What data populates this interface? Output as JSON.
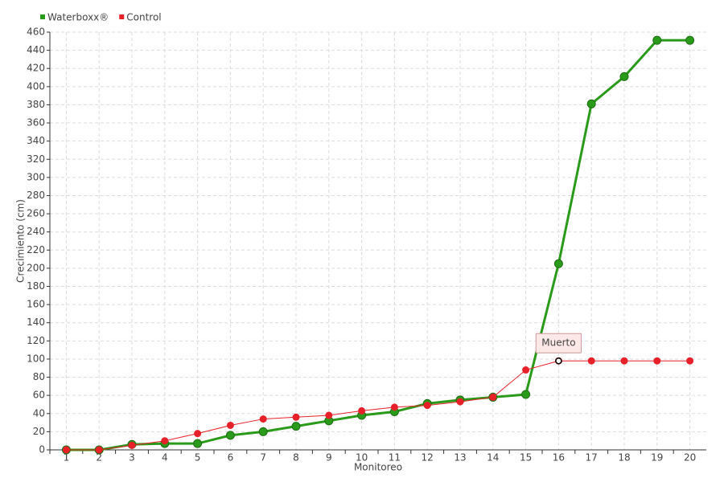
{
  "chart_data": {
    "type": "line",
    "x_label": "Monitoreo",
    "y_label": "Crecimiento (cm)",
    "categories": [
      "1",
      "2",
      "3",
      "4",
      "5",
      "6",
      "7",
      "8",
      "9",
      "10",
      "11",
      "12",
      "13",
      "14",
      "15",
      "16",
      "17",
      "18",
      "19",
      "20"
    ],
    "series": [
      {
        "name": "Waterboxx®",
        "color": "#2a9a1a",
        "values": [
          0,
          0,
          6,
          7,
          7,
          16,
          20,
          26,
          32,
          38,
          42,
          51,
          55,
          58,
          61,
          205,
          381,
          411,
          451,
          451
        ]
      },
      {
        "name": "Control",
        "color": "#e8202a",
        "values": [
          0,
          0,
          5,
          10,
          18,
          27,
          34,
          36,
          38,
          43,
          47,
          49,
          53,
          58,
          88,
          98,
          98,
          98,
          98,
          98
        ]
      }
    ],
    "ylim": [
      0,
      460
    ],
    "yticks": [
      0,
      20,
      40,
      60,
      80,
      100,
      120,
      140,
      160,
      180,
      200,
      220,
      240,
      260,
      280,
      300,
      320,
      340,
      360,
      380,
      400,
      420,
      440,
      460
    ],
    "grid": true,
    "legend": "top-left",
    "annotations": [
      {
        "text": "Muerto",
        "series": "Control",
        "category": "16"
      }
    ]
  }
}
